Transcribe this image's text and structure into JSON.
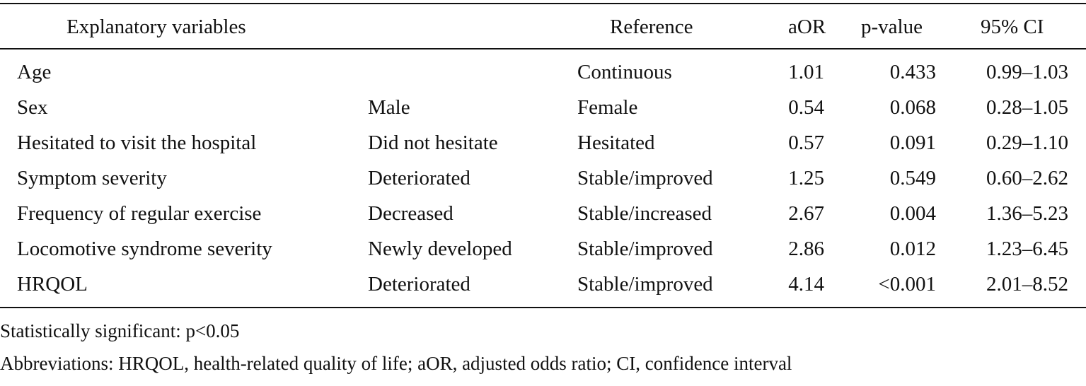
{
  "table": {
    "headers": {
      "explanatory": "Explanatory variables",
      "reference": "Reference",
      "aor": "aOR",
      "p_value": "p-value",
      "ci": "95% CI"
    },
    "rows": [
      {
        "variable": "Age",
        "category": "",
        "reference": "Continuous",
        "aor": "1.01",
        "p": "0.433",
        "ci": "0.99–1.03"
      },
      {
        "variable": "Sex",
        "category": "Male",
        "reference": "Female",
        "aor": "0.54",
        "p": "0.068",
        "ci": "0.28–1.05"
      },
      {
        "variable": "Hesitated to visit the hospital",
        "category": "Did not hesitate",
        "reference": "Hesitated",
        "aor": "0.57",
        "p": "0.091",
        "ci": "0.29–1.10"
      },
      {
        "variable": "Symptom severity",
        "category": "Deteriorated",
        "reference": "Stable/improved",
        "aor": "1.25",
        "p": "0.549",
        "ci": "0.60–2.62"
      },
      {
        "variable": "Frequency of regular exercise",
        "category": "Decreased",
        "reference": "Stable/increased",
        "aor": "2.67",
        "p": "0.004",
        "ci": "1.36–5.23"
      },
      {
        "variable": "Locomotive syndrome severity",
        "category": "Newly developed",
        "reference": "Stable/improved",
        "aor": "2.86",
        "p": "0.012",
        "ci": "1.23–6.45"
      },
      {
        "variable": "HRQOL",
        "category": "Deteriorated",
        "reference": "Stable/improved",
        "aor": "4.14",
        "p": "<0.001",
        "ci": "2.01–8.52"
      }
    ]
  },
  "notes": {
    "significance": "Statistically significant: p<0.05",
    "abbreviations": "Abbreviations: HRQOL, health-related quality of life; aOR, adjusted odds ratio; CI, confidence interval"
  }
}
